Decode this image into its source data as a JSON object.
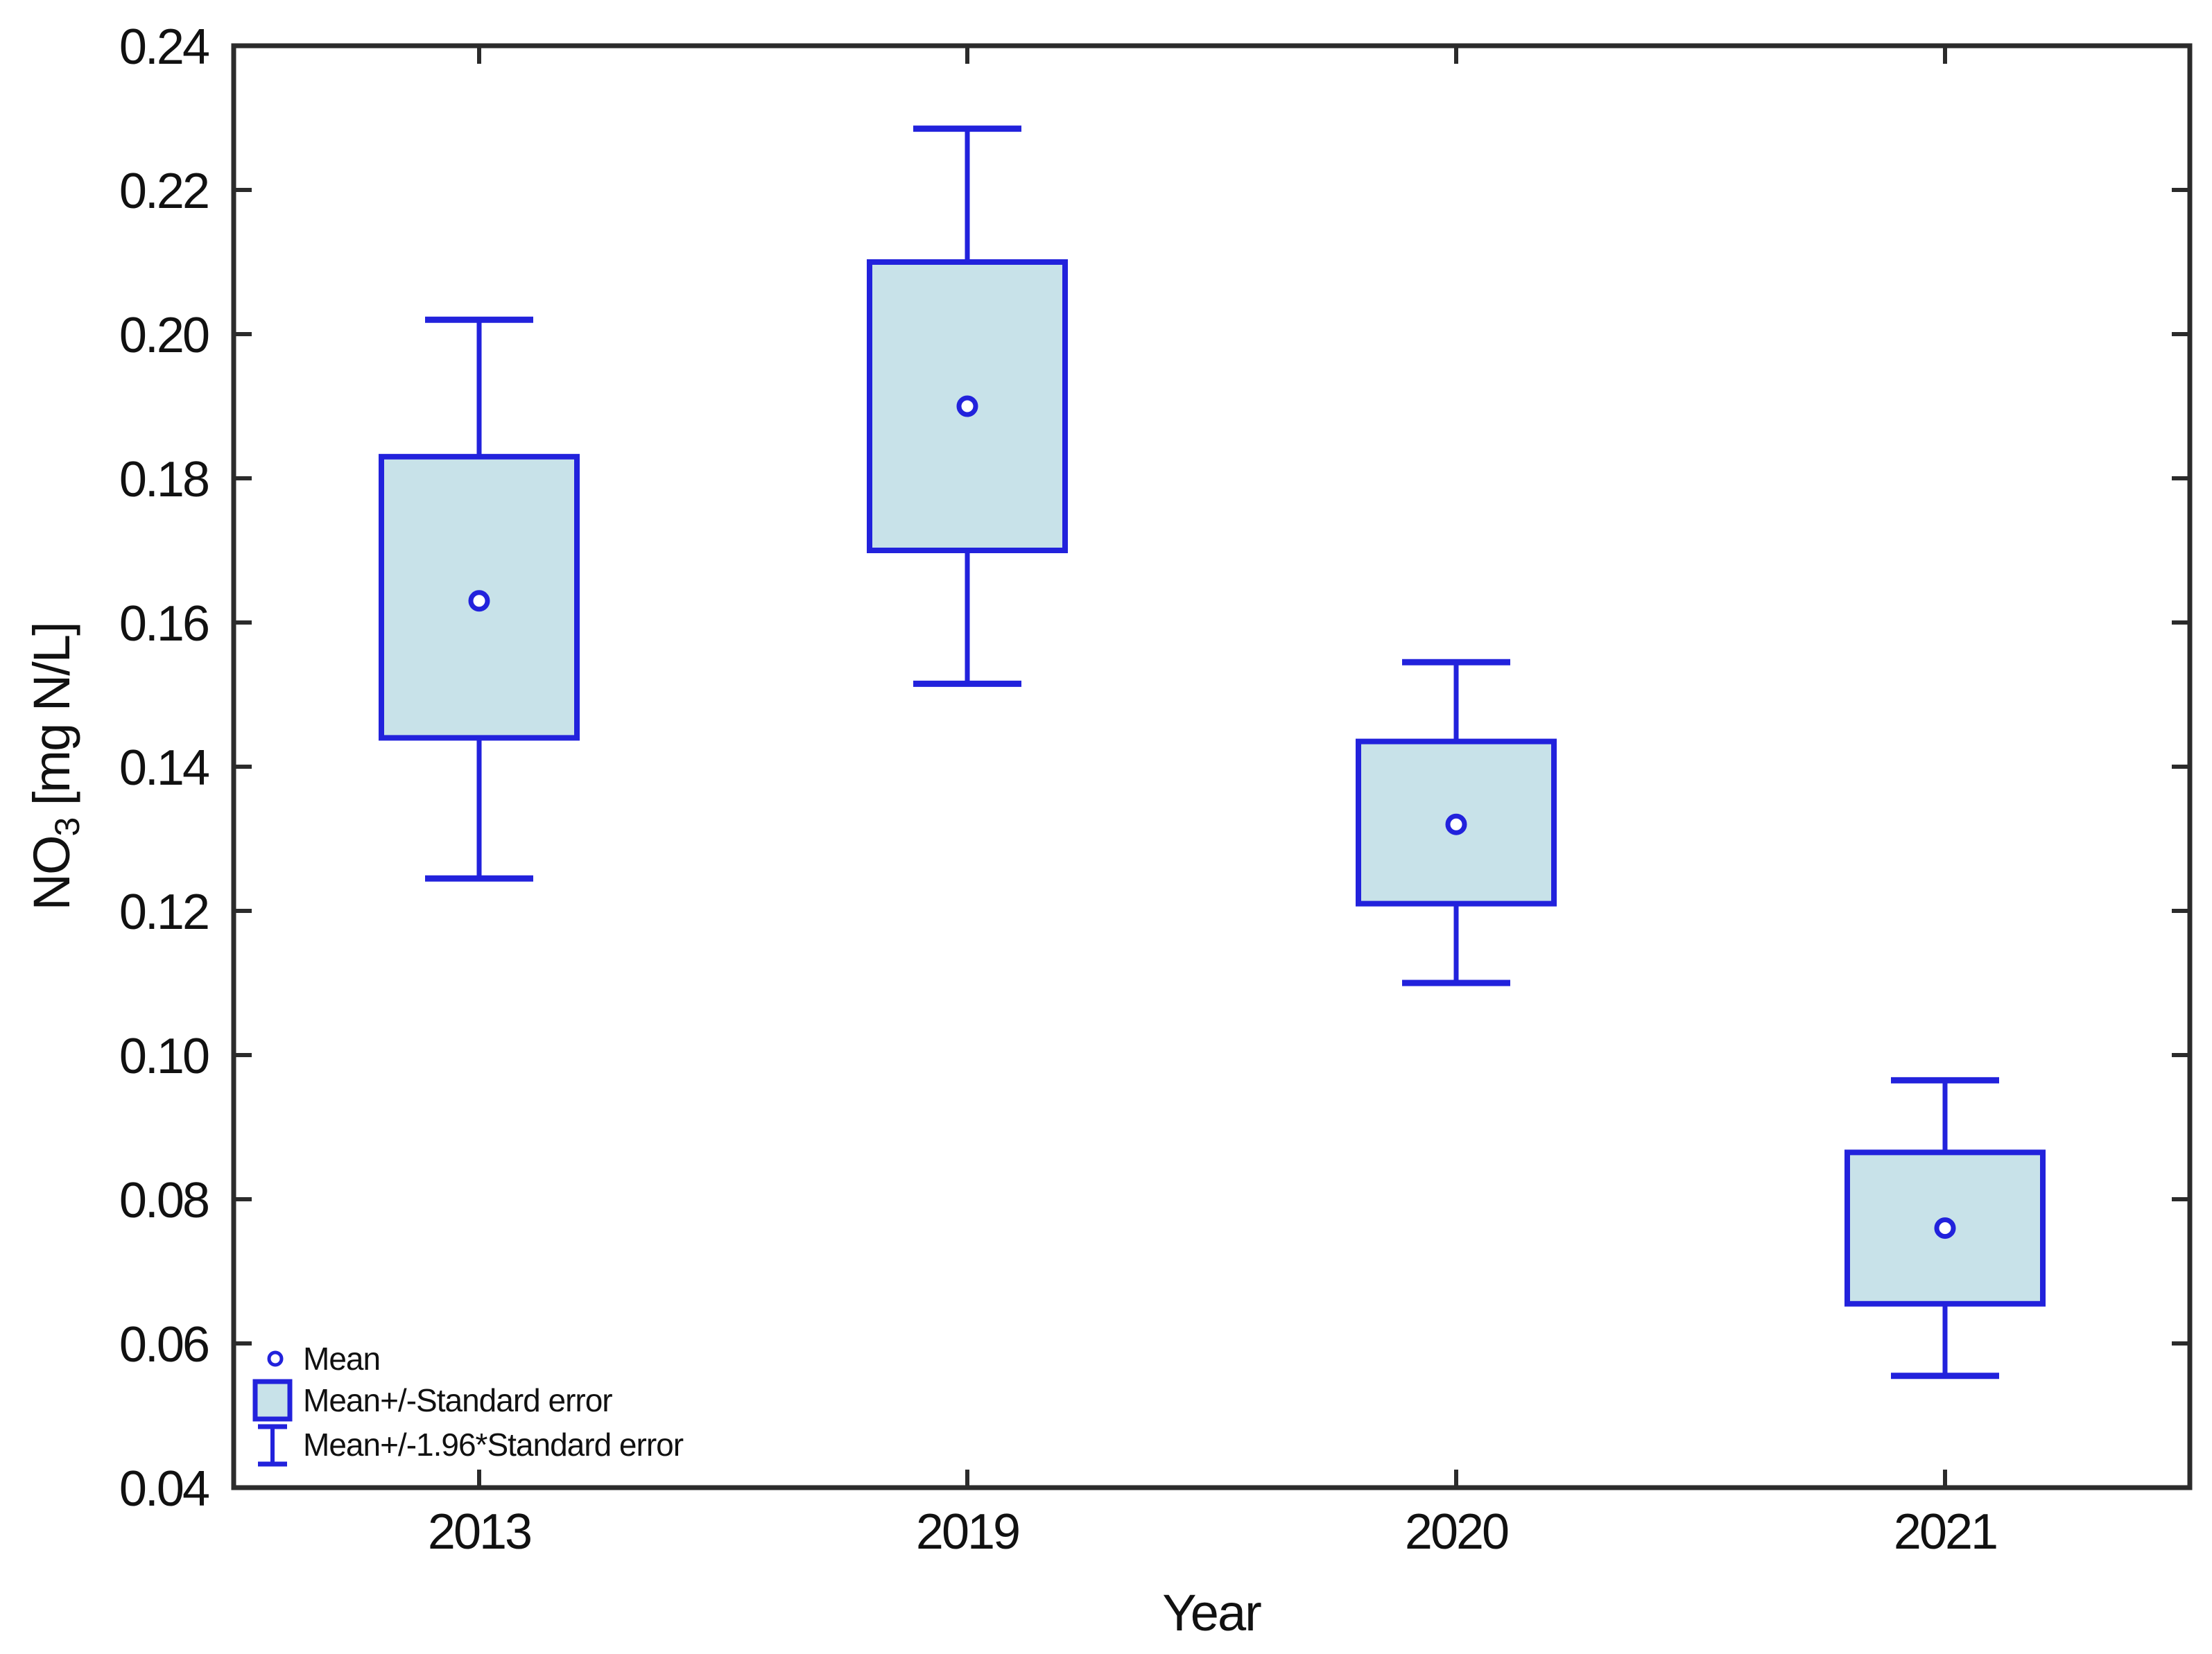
{
  "chart_data": {
    "type": "box",
    "variant": "mean-standard-error-plot",
    "title": "",
    "xlabel": "Year",
    "ylabel": "NO3 [mg N/L]",
    "ylabel_parts": {
      "pre": "NO",
      "sub": "3",
      "post": " [mg N/L]"
    },
    "categories": [
      "2013",
      "2019",
      "2020",
      "2021"
    ],
    "ylim": [
      0.04,
      0.24
    ],
    "ytick_step": 0.02,
    "yticks": [
      "0.24",
      "0.22",
      "0.20",
      "0.18",
      "0.16",
      "0.14",
      "0.12",
      "0.10",
      "0.08",
      "0.06",
      "0.04"
    ],
    "grid": false,
    "legend_position": "bottom-left-inside",
    "series": [
      {
        "category": "2013",
        "mean": 0.163,
        "se_low": 0.144,
        "se_high": 0.183,
        "ci_low": 0.1245,
        "ci_high": 0.202
      },
      {
        "category": "2019",
        "mean": 0.19,
        "se_low": 0.17,
        "se_high": 0.21,
        "ci_low": 0.1515,
        "ci_high": 0.2285
      },
      {
        "category": "2020",
        "mean": 0.132,
        "se_low": 0.121,
        "se_high": 0.1435,
        "ci_low": 0.11,
        "ci_high": 0.1545
      },
      {
        "category": "2021",
        "mean": 0.076,
        "se_low": 0.0655,
        "se_high": 0.0865,
        "ci_low": 0.0555,
        "ci_high": 0.0965
      }
    ],
    "legend": [
      {
        "label": "Mean",
        "marker": "mean-circle"
      },
      {
        "label": "Mean+/-Standard error",
        "marker": "se-box"
      },
      {
        "label": "Mean+/-1.96*Standard error",
        "marker": "ci-whisker"
      }
    ],
    "colors": {
      "box_border": "#2222DC",
      "box_fill": "#C8E2E9",
      "axis": "#2B2B2B",
      "text": "#111111",
      "background": "#FFFFFF"
    }
  }
}
